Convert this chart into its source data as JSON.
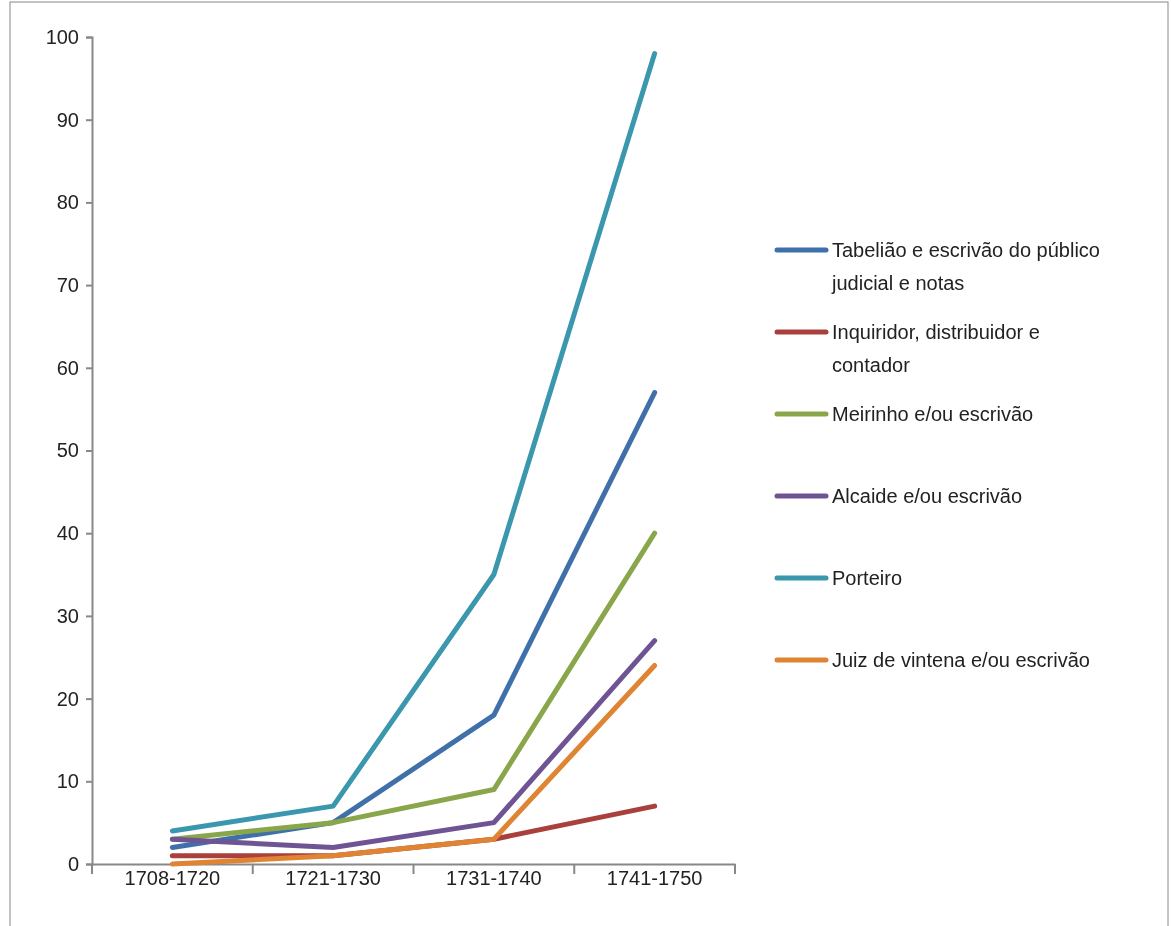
{
  "chart_data": {
    "type": "line",
    "categories": [
      "1708-1720",
      "1721-1730",
      "1731-1740",
      "1741-1750"
    ],
    "ylim": [
      0,
      100
    ],
    "yticks": [
      0,
      10,
      20,
      30,
      40,
      50,
      60,
      70,
      80,
      90,
      100
    ],
    "grid": false,
    "legend": "right",
    "marker": "none",
    "line_style": "solid",
    "series": [
      {
        "name": "Tabelião e escrivão do público judicial e notas",
        "color": "#4070aa",
        "values": [
          2,
          5,
          18,
          57
        ]
      },
      {
        "name": "Inquiridor, distribuidor e contador",
        "color": "#a9403d",
        "values": [
          1,
          1,
          3,
          7
        ]
      },
      {
        "name": "Meirinho e/ou escrivão",
        "color": "#89a64a",
        "values": [
          3,
          5,
          9,
          40
        ]
      },
      {
        "name": "Alcaide e/ou escrivão",
        "color": "#6f5493",
        "values": [
          3,
          2,
          5,
          27
        ]
      },
      {
        "name": "Porteiro",
        "color": "#3a97ad",
        "values": [
          4,
          7,
          35,
          98
        ]
      },
      {
        "name": "Juiz de vintena e/ou escrivão",
        "color": "#de8433",
        "values": [
          0,
          1,
          3,
          24
        ]
      }
    ]
  }
}
